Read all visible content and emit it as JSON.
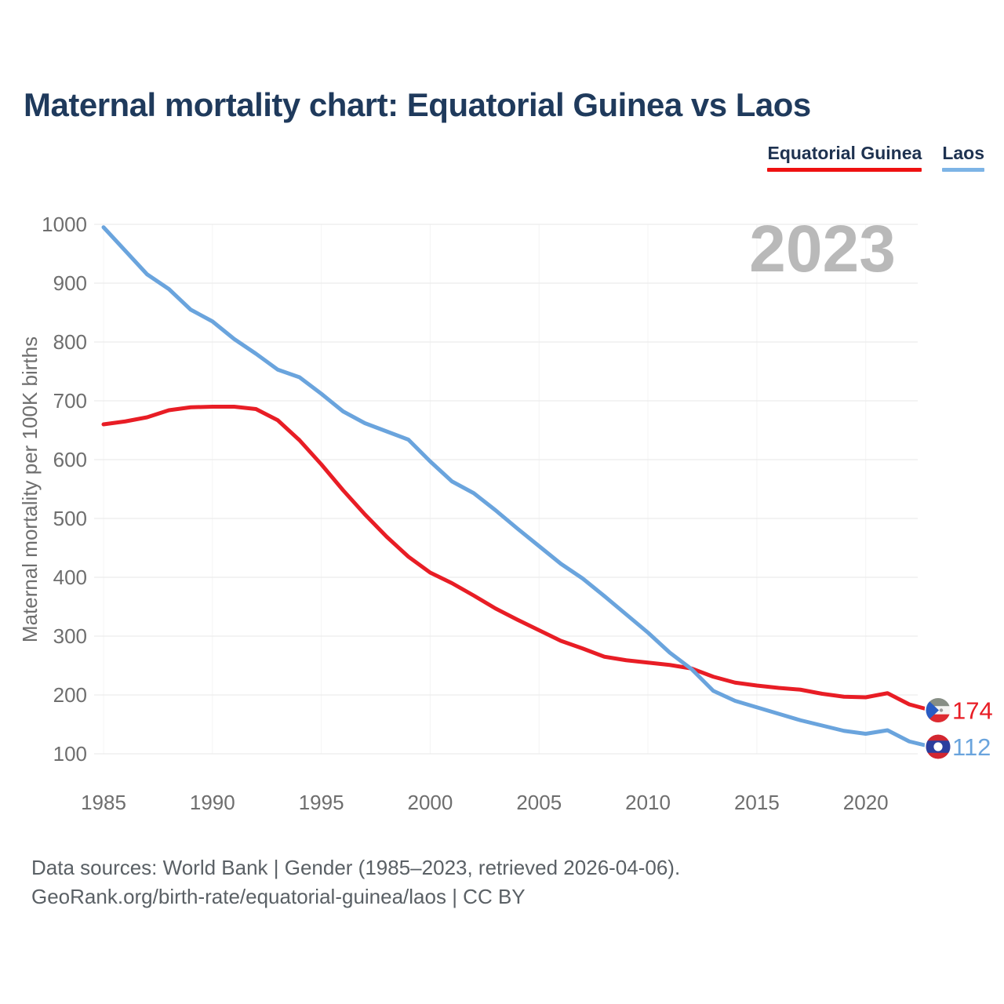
{
  "header": {
    "title": "Maternal mortality chart: Equatorial Guinea vs Laos"
  },
  "legend": {
    "items": [
      {
        "label": "Equatorial Guinea",
        "underline_color": "#ee1111"
      },
      {
        "label": "Laos",
        "underline_color": "#7db4e6"
      }
    ]
  },
  "watermark": "2023",
  "chart_data": {
    "type": "line",
    "title": "Maternal mortality chart: Equatorial Guinea vs Laos",
    "xlabel": "",
    "ylabel": "Maternal mortality per 100K births",
    "ylim": [
      100,
      1000
    ],
    "grid": true,
    "legend_position": "top-right",
    "y_ticks": [
      100,
      200,
      300,
      400,
      500,
      600,
      700,
      800,
      900,
      1000
    ],
    "x_ticks": [
      1985,
      1990,
      1995,
      2000,
      2005,
      2010,
      2015,
      2020
    ],
    "x": [
      1985,
      1986,
      1987,
      1988,
      1989,
      1990,
      1991,
      1992,
      1993,
      1994,
      1995,
      1996,
      1997,
      1998,
      1999,
      2000,
      2001,
      2002,
      2003,
      2004,
      2005,
      2006,
      2007,
      2008,
      2009,
      2010,
      2011,
      2012,
      2013,
      2014,
      2015,
      2016,
      2017,
      2018,
      2019,
      2020,
      2021,
      2022,
      2023
    ],
    "series": [
      {
        "name": "Equatorial Guinea",
        "color": "#e81d25",
        "flag": "equatorial-guinea",
        "end_label": "174",
        "values": [
          660,
          665,
          672,
          684,
          689,
          690,
          690,
          686,
          667,
          633,
          592,
          548,
          507,
          469,
          435,
          408,
          390,
          369,
          347,
          328,
          310,
          292,
          279,
          265,
          259,
          255,
          251,
          245,
          231,
          221,
          216,
          212,
          209,
          202,
          197,
          196,
          203,
          184,
          174
        ]
      },
      {
        "name": "Laos",
        "color": "#6aa4dd",
        "flag": "laos",
        "end_label": "112",
        "values": [
          995,
          955,
          915,
          890,
          855,
          835,
          805,
          780,
          753,
          740,
          712,
          682,
          662,
          648,
          634,
          597,
          563,
          543,
          514,
          483,
          453,
          423,
          398,
          368,
          337,
          306,
          272,
          244,
          207,
          190,
          179,
          168,
          157,
          148,
          139,
          134,
          140,
          121,
          112
        ]
      }
    ]
  },
  "colors": {
    "grid_line": "#ececec",
    "grid_line_vertical": "#f4f4f4",
    "tick_label": "#6e6e6e",
    "watermark": "#b9b9b9",
    "eg_flag": {
      "top": "#878e85",
      "middle": "#f4f4f2",
      "bottom": "#dd2b31",
      "triangle": "#2a5cc3"
    },
    "laos_flag": {
      "red": "#d22630",
      "blue": "#2b3f9e"
    }
  },
  "footer": {
    "line1": "Data sources: World Bank | Gender (1985–2023, retrieved 2026-04-06).",
    "line2": "GeoRank.org/birth-rate/equatorial-guinea/laos | CC BY"
  }
}
